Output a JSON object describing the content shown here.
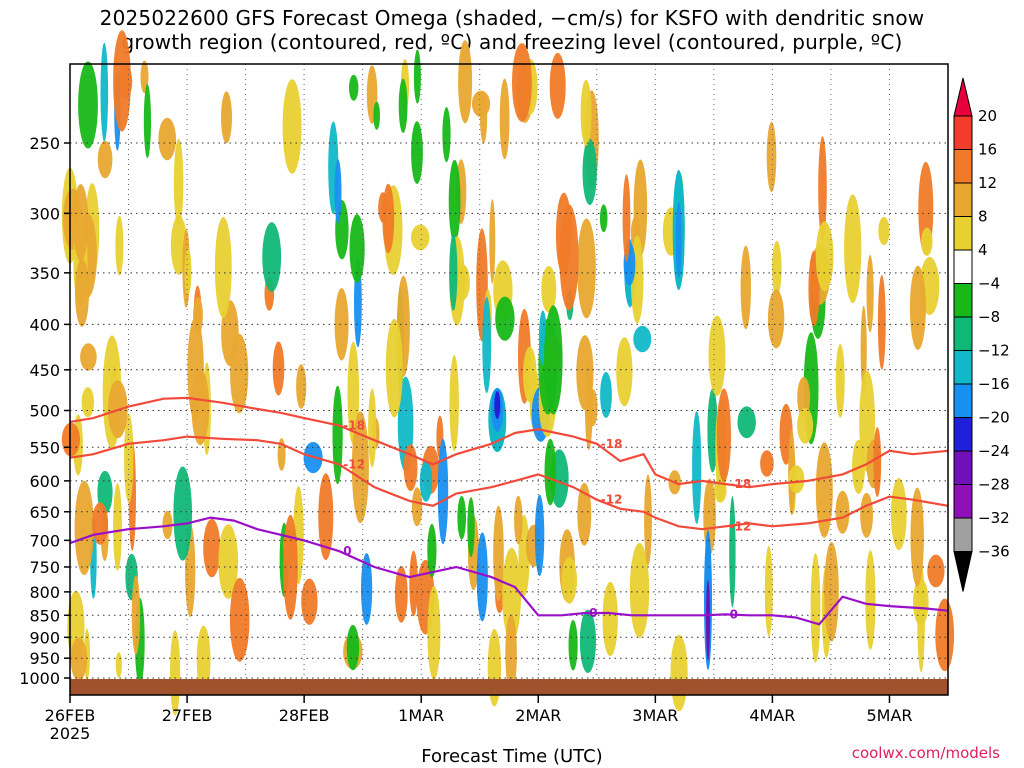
{
  "title": {
    "line1": "2025022600 GFS Forecast Omega (shaded, −cm/s) for KSFO with dendritic snow",
    "line2": "growth region (contoured, red, ºC) and freezing level (contoured, purple, ºC)"
  },
  "xlabel": "Forecast Time (UTC)",
  "credit": "coolwx.com/models",
  "colors": {
    "dgz_contour": "#f24a3a",
    "freezing_contour": "#9a10c8",
    "ground": "#a0522d"
  },
  "chart_data": {
    "type": "heatmap",
    "title": "2025022600 GFS Forecast Omega (shaded, −cm/s) for KSFO with dendritic snow growth region (contoured, red, ºC) and freezing level (contoured, purple, ºC)",
    "xlabel": "Forecast Time (UTC)",
    "ylabel": "",
    "y_scale": "log-pressure (reversed)",
    "ylim": [
      1000,
      200
    ],
    "grid": true,
    "x_ticks": [
      "26FEB",
      "27FEB",
      "28FEB",
      "1MAR",
      "2MAR",
      "3MAR",
      "4MAR",
      "5MAR"
    ],
    "x_tick_sub": "2025",
    "y_ticks": [
      250,
      300,
      350,
      400,
      450,
      500,
      550,
      600,
      650,
      700,
      750,
      800,
      850,
      900,
      950,
      1000
    ],
    "colorbar": {
      "levels": [
        20,
        16,
        12,
        8,
        4,
        -4,
        -8,
        -12,
        -16,
        -20,
        -24,
        -28,
        -32,
        -36
      ],
      "colors": [
        "#e8003c",
        "#f23c2c",
        "#f07a28",
        "#e8a830",
        "#e8d030",
        "#ffffff",
        "#18b818",
        "#10b878",
        "#10b8c8",
        "#1890f0",
        "#2020d8",
        "#7010b8",
        "#9010b8",
        "#a0a0a0",
        "#000000"
      ]
    },
    "contours": [
      {
        "label": "-18",
        "color": "#f24a3a",
        "x": [
          26.0,
          26.2,
          26.5,
          26.8,
          27.0,
          27.3,
          27.6,
          27.8,
          28.0,
          28.3,
          28.6,
          28.9,
          29.1,
          29.3,
          29.6,
          29.8,
          30.0,
          30.3,
          30.5,
          30.7,
          30.9,
          31.0,
          31.2,
          31.4,
          31.6,
          31.8,
          32.0,
          32.3,
          32.6,
          32.8,
          33.0,
          33.2,
          33.5
        ],
        "y": [
          515,
          510,
          495,
          485,
          484,
          490,
          498,
          503,
          510,
          520,
          540,
          560,
          575,
          560,
          545,
          530,
          525,
          535,
          545,
          570,
          560,
          590,
          605,
          600,
          605,
          610,
          605,
          600,
          590,
          575,
          555,
          560,
          555
        ]
      },
      {
        "label": "-12",
        "color": "#f24a3a",
        "x": [
          26.0,
          26.2,
          26.5,
          26.8,
          27.0,
          27.3,
          27.6,
          27.8,
          28.0,
          28.3,
          28.6,
          28.9,
          29.1,
          29.3,
          29.6,
          29.8,
          30.0,
          30.3,
          30.5,
          30.7,
          30.9,
          31.0,
          31.2,
          31.4,
          31.6,
          31.8,
          32.0,
          32.3,
          32.6,
          32.8,
          33.0,
          33.2,
          33.5
        ],
        "y": [
          565,
          560,
          545,
          540,
          535,
          538,
          540,
          545,
          560,
          575,
          610,
          632,
          640,
          620,
          610,
          600,
          590,
          610,
          630,
          645,
          650,
          660,
          675,
          680,
          675,
          670,
          675,
          670,
          660,
          640,
          625,
          630,
          640
        ]
      },
      {
        "label": "0",
        "color": "#9a10c8",
        "x": [
          26.0,
          26.2,
          26.5,
          26.8,
          27.0,
          27.2,
          27.4,
          27.6,
          27.8,
          28.0,
          28.3,
          28.6,
          28.9,
          29.1,
          29.3,
          29.6,
          29.8,
          30.0,
          30.2,
          30.4,
          30.6,
          30.8,
          31.0,
          31.2,
          31.4,
          31.6,
          31.8,
          32.0,
          32.2,
          32.4,
          32.6,
          32.8,
          33.0,
          33.3,
          33.5
        ],
        "y": [
          705,
          690,
          680,
          675,
          670,
          660,
          665,
          680,
          690,
          700,
          720,
          750,
          770,
          760,
          750,
          770,
          790,
          850,
          850,
          845,
          845,
          850,
          850,
          850,
          850,
          848,
          850,
          850,
          855,
          870,
          810,
          825,
          830,
          835,
          840
        ]
      }
    ]
  }
}
